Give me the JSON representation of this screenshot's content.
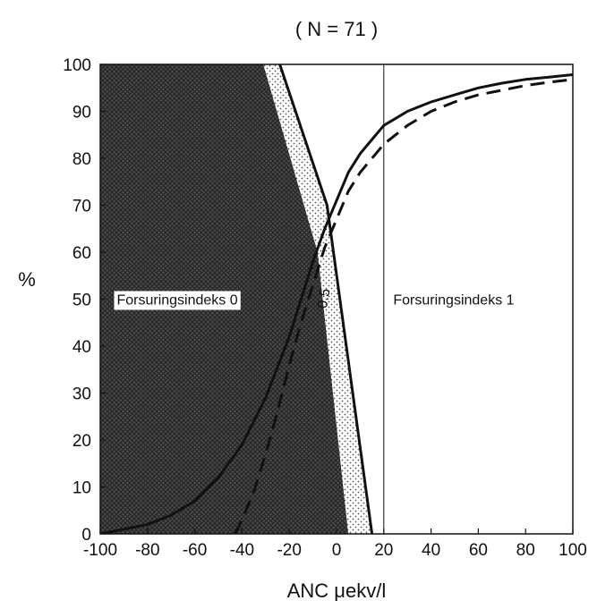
{
  "chart_data": {
    "type": "line",
    "title": "( N = 71 )",
    "xlabel": "ANC μekv/l",
    "ylabel": "%",
    "xlim": [
      -100,
      100
    ],
    "ylim": [
      0,
      100
    ],
    "xticks": [
      -100,
      -80,
      -60,
      -40,
      -20,
      0,
      20,
      40,
      60,
      80,
      100
    ],
    "yticks": [
      0,
      10,
      20,
      30,
      40,
      50,
      60,
      70,
      80,
      90,
      100
    ],
    "grid": false,
    "series": [
      {
        "style": "solid",
        "x": [
          -100,
          -90,
          -80,
          -70,
          -60,
          -50,
          -40,
          -30,
          -20,
          -15,
          -10,
          -5,
          0,
          5,
          10,
          15,
          20,
          30,
          40,
          50,
          60,
          70,
          80,
          90,
          100
        ],
        "y": [
          0,
          1,
          2,
          4,
          7,
          12,
          19,
          29,
          42,
          50,
          58,
          65,
          71,
          77,
          81,
          84,
          87,
          90,
          92,
          93.5,
          95,
          96,
          96.8,
          97.3,
          97.8
        ]
      },
      {
        "style": "dashed",
        "x": [
          -43,
          -40,
          -35,
          -30,
          -25,
          -20,
          -15,
          -10,
          -5,
          0,
          5,
          10,
          15,
          20,
          30,
          40,
          50,
          60,
          70,
          80,
          90,
          100
        ],
        "y": [
          0,
          3,
          9,
          17,
          26,
          36,
          45,
          53,
          61,
          67,
          73,
          77,
          80,
          83,
          87,
          90,
          92,
          93.5,
          94.5,
          95.5,
          96.2,
          96.8
        ]
      }
    ],
    "regions": [
      {
        "label": "Forsuringsindeks 0",
        "fill": "crosshatch-dark",
        "polygon": [
          [
            -100,
            0
          ],
          [
            -100,
            100
          ],
          [
            -31,
            100
          ],
          [
            -8,
            60
          ],
          [
            5,
            0
          ]
        ]
      },
      {
        "label": "0.5",
        "fill": "dotted",
        "polygon": [
          [
            -31,
            100
          ],
          [
            -24,
            100
          ],
          [
            -4,
            70
          ],
          [
            15,
            0
          ],
          [
            5,
            0
          ],
          [
            -8,
            60
          ]
        ]
      },
      {
        "label": "Forsuringsindeks 1",
        "fill": "white"
      }
    ],
    "boundary_lines": [
      {
        "x": [
          -24,
          -4,
          15
        ],
        "y": [
          100,
          70,
          0
        ],
        "style": "solid-thick"
      },
      {
        "x": [
          20,
          20
        ],
        "y": [
          0,
          100
        ],
        "style": "solid-thin"
      }
    ],
    "colors": {
      "dark_fill": "#4a4a4a",
      "hatch_line": "#222222",
      "dot": "#555555",
      "line": "#111111",
      "background": "#ffffff"
    }
  }
}
